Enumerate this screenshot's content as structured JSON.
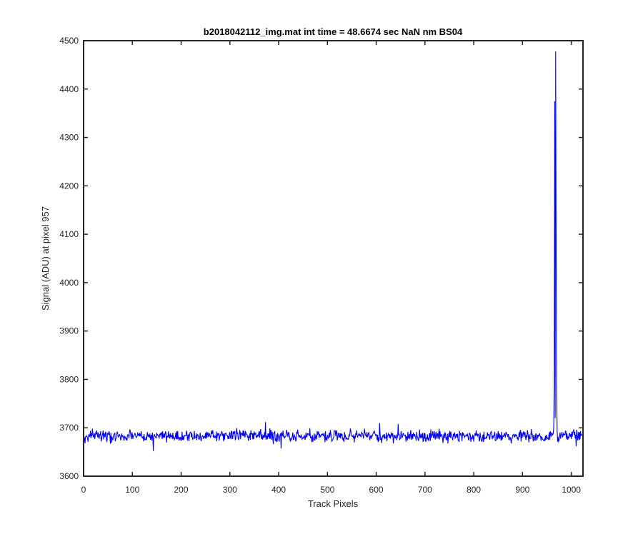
{
  "chart_data": {
    "type": "line",
    "title": "b2018042112_img.mat int time = 48.6674 sec  NaN nm BS04",
    "xlabel": "Track Pixels",
    "ylabel": "Signal (ADU) at pixel 957",
    "xlim": [
      0,
      1024
    ],
    "ylim": [
      3600,
      4500
    ],
    "xticks": [
      0,
      100,
      200,
      300,
      400,
      500,
      600,
      700,
      800,
      900,
      1000
    ],
    "yticks": [
      3600,
      3700,
      3800,
      3900,
      4000,
      4100,
      4200,
      4300,
      4400,
      4500
    ],
    "grid": false,
    "series": [
      {
        "color": "#0000ff",
        "baseline": 3683,
        "noise_amplitude": 10,
        "spikes": [
          {
            "x": 964,
            "y": 3700
          },
          {
            "x": 965,
            "y": 3790
          },
          {
            "x": 966,
            "y": 4375
          },
          {
            "x": 967,
            "y": 3720
          },
          {
            "x": 968,
            "y": 4478
          },
          {
            "x": 969,
            "y": 4065
          },
          {
            "x": 970,
            "y": 3780
          },
          {
            "x": 971,
            "y": 3695
          }
        ],
        "notable_points": [
          {
            "x": 143,
            "y": 3652
          },
          {
            "x": 373,
            "y": 3712
          },
          {
            "x": 405,
            "y": 3657
          },
          {
            "x": 607,
            "y": 3710
          },
          {
            "x": 645,
            "y": 3708
          },
          {
            "x": 1010,
            "y": 3662
          }
        ]
      }
    ]
  }
}
